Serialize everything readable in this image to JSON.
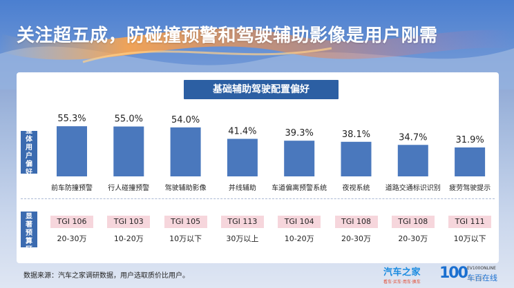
{
  "page": {
    "title": "关注超五成，防碰撞预警和驾驶辅助影像是用户刚需",
    "source_note": "数据来源：汽车之家调研数据，用户选取质价比用户。",
    "watermark": "车之家"
  },
  "chart_data": {
    "type": "bar",
    "title": "基础辅助驾驶配置偏好",
    "row_labels": [
      "整体用户偏好",
      "偏好显著预算区间"
    ],
    "categories": [
      "前车防撞预警",
      "行人碰撞预警",
      "驾驶辅助影像",
      "并线辅助",
      "车道偏离预警系统",
      "夜视系统",
      "道路交通标识识别",
      "疲劳驾驶提示"
    ],
    "values": [
      55.3,
      55.0,
      54.0,
      41.4,
      39.3,
      38.1,
      34.7,
      31.9
    ],
    "value_labels": [
      "55.3%",
      "55.0%",
      "54.0%",
      "41.4%",
      "39.3%",
      "38.1%",
      "34.7%",
      "31.9%"
    ],
    "tgi": [
      "TGI 106",
      "TGI 103",
      "TGI 105",
      "TGI 113",
      "TGI 104",
      "TGI 108",
      "TGI 108",
      "TGI 111"
    ],
    "price_ranges": [
      "20-30万",
      "10-20万",
      "10万以下",
      "30万以上",
      "10-20万",
      "20-30万",
      "20-30万",
      "10万以下"
    ],
    "grid": false,
    "legend": "none",
    "colors": {
      "bar": "#4a78bd",
      "tgi_badge": "#f6d6dc",
      "label_box": "#3b6bb0",
      "subtitle_box": "#2c5fa3"
    }
  },
  "logos": {
    "autohome_name": "汽车之家",
    "autohome_slogan": "看车·买车·用车·换车",
    "chebai_mark": "100",
    "chebai_en": "EV100ONLINE",
    "chebai_name": "车百在线"
  }
}
